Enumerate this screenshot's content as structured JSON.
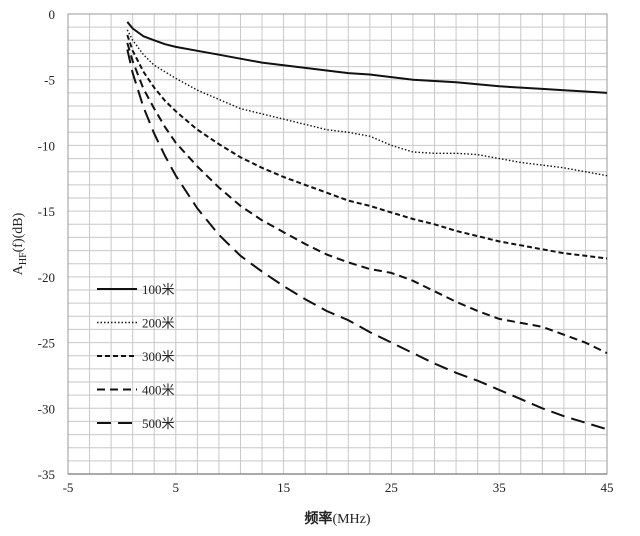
{
  "chart_data": {
    "type": "line",
    "title": "",
    "xlabel_main": "频率",
    "xlabel_unit": "(MHz)",
    "ylabel_main": "A",
    "ylabel_sub": "HF",
    "ylabel_rest": "(f)(dB)",
    "xlim": [
      -5,
      45
    ],
    "ylim": [
      -35,
      0
    ],
    "x_ticks": [
      -5,
      5,
      15,
      25,
      35,
      45
    ],
    "x_minor_step": 2,
    "y_ticks": [
      0,
      -5,
      -10,
      -15,
      -20,
      -25,
      -30,
      -35
    ],
    "y_minor_step": 1,
    "grid": true,
    "legend_position": "left-lower",
    "series": [
      {
        "name": "100米",
        "dash": "solid",
        "x": [
          0.5,
          1,
          2,
          3,
          4,
          5,
          7,
          9,
          11,
          13,
          15,
          17,
          19,
          21,
          23,
          25,
          27,
          29,
          31,
          33,
          35,
          37,
          39,
          41,
          43,
          45
        ],
        "y": [
          -0.6,
          -1.1,
          -1.7,
          -2.0,
          -2.3,
          -2.5,
          -2.8,
          -3.1,
          -3.4,
          -3.7,
          -3.9,
          -4.1,
          -4.3,
          -4.5,
          -4.6,
          -4.8,
          -5.0,
          -5.1,
          -5.2,
          -5.35,
          -5.5,
          -5.6,
          -5.7,
          -5.8,
          -5.9,
          -6.0
        ]
      },
      {
        "name": "200米",
        "dash": "dotted",
        "x": [
          0.5,
          1,
          2,
          3,
          4,
          5,
          7,
          9,
          11,
          13,
          15,
          17,
          19,
          21,
          23,
          25,
          27,
          29,
          31,
          33,
          35,
          37,
          39,
          41,
          43,
          45
        ],
        "y": [
          -1.2,
          -2.0,
          -3.1,
          -3.9,
          -4.4,
          -4.9,
          -5.8,
          -6.5,
          -7.2,
          -7.6,
          -8.0,
          -8.4,
          -8.8,
          -9.0,
          -9.3,
          -10.0,
          -10.5,
          -10.6,
          -10.6,
          -10.7,
          -11.0,
          -11.3,
          -11.5,
          -11.7,
          -12.0,
          -12.3
        ]
      },
      {
        "name": "300米",
        "dash": "short-dash",
        "x": [
          0.5,
          1,
          2,
          3,
          4,
          5,
          7,
          9,
          11,
          13,
          15,
          17,
          19,
          21,
          23,
          25,
          27,
          29,
          31,
          33,
          35,
          37,
          39,
          41,
          43,
          45
        ],
        "y": [
          -1.6,
          -2.8,
          -4.4,
          -5.6,
          -6.6,
          -7.4,
          -8.8,
          -9.9,
          -10.9,
          -11.7,
          -12.4,
          -13.0,
          -13.6,
          -14.2,
          -14.6,
          -15.1,
          -15.6,
          -16.0,
          -16.5,
          -16.9,
          -17.3,
          -17.6,
          -17.9,
          -18.2,
          -18.4,
          -18.6
        ]
      },
      {
        "name": "400米",
        "dash": "medium-dash",
        "x": [
          0.5,
          1,
          2,
          3,
          4,
          5,
          7,
          9,
          11,
          13,
          15,
          17,
          19,
          21,
          23,
          25,
          27,
          29,
          31,
          33,
          35,
          37,
          39,
          41,
          43,
          45
        ],
        "y": [
          -2.2,
          -3.6,
          -5.7,
          -7.2,
          -8.6,
          -9.8,
          -11.6,
          -13.2,
          -14.6,
          -15.7,
          -16.6,
          -17.5,
          -18.3,
          -18.9,
          -19.4,
          -19.7,
          -20.3,
          -21.1,
          -21.9,
          -22.6,
          -23.2,
          -23.5,
          -23.8,
          -24.4,
          -25.0,
          -25.8
        ]
      },
      {
        "name": "500米",
        "dash": "long-dash",
        "x": [
          0.5,
          1,
          2,
          3,
          4,
          5,
          7,
          9,
          11,
          13,
          15,
          17,
          19,
          21,
          23,
          25,
          27,
          29,
          31,
          33,
          35,
          37,
          39,
          41,
          43,
          45
        ],
        "y": [
          -2.7,
          -4.5,
          -7.1,
          -9.1,
          -10.8,
          -12.3,
          -14.8,
          -16.8,
          -18.4,
          -19.6,
          -20.7,
          -21.7,
          -22.6,
          -23.3,
          -24.2,
          -25.0,
          -25.8,
          -26.6,
          -27.3,
          -27.9,
          -28.6,
          -29.3,
          -30.0,
          -30.6,
          -31.1,
          -31.6
        ]
      }
    ]
  }
}
